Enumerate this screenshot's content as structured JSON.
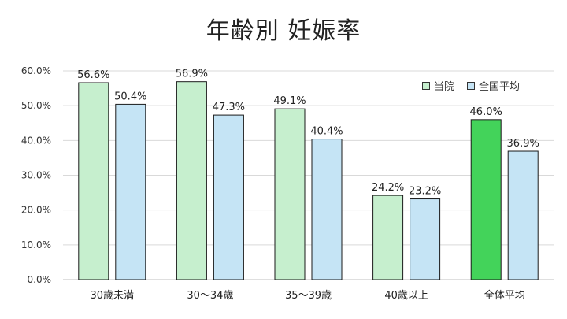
{
  "chart_data": {
    "type": "bar",
    "title": "年齢別 妊娠率",
    "categories": [
      "30歳未満",
      "30～34歳",
      "35～39歳",
      "40歳以上",
      "全体平均"
    ],
    "series": [
      {
        "name": "当院",
        "values": [
          56.6,
          56.9,
          49.1,
          24.2,
          46.0
        ],
        "value_labels": [
          "56.6%",
          "56.9%",
          "49.1%",
          "24.2%",
          "46.0%"
        ],
        "color": "#c6efce",
        "highlight_color": "#43d35a",
        "highlight_index": 4
      },
      {
        "name": "全国平均",
        "values": [
          50.4,
          47.3,
          40.4,
          23.2,
          36.9
        ],
        "value_labels": [
          "50.4%",
          "47.3%",
          "40.4%",
          "23.2%",
          "36.9%"
        ],
        "color": "#c5e4f5"
      }
    ],
    "yticks": [
      "0.0%",
      "10.0%",
      "20.0%",
      "30.0%",
      "40.0%",
      "50.0%",
      "60.0%"
    ],
    "ylim": [
      0,
      60
    ],
    "grid": true,
    "legend_position": "top-right",
    "xlabel": "",
    "ylabel": ""
  }
}
